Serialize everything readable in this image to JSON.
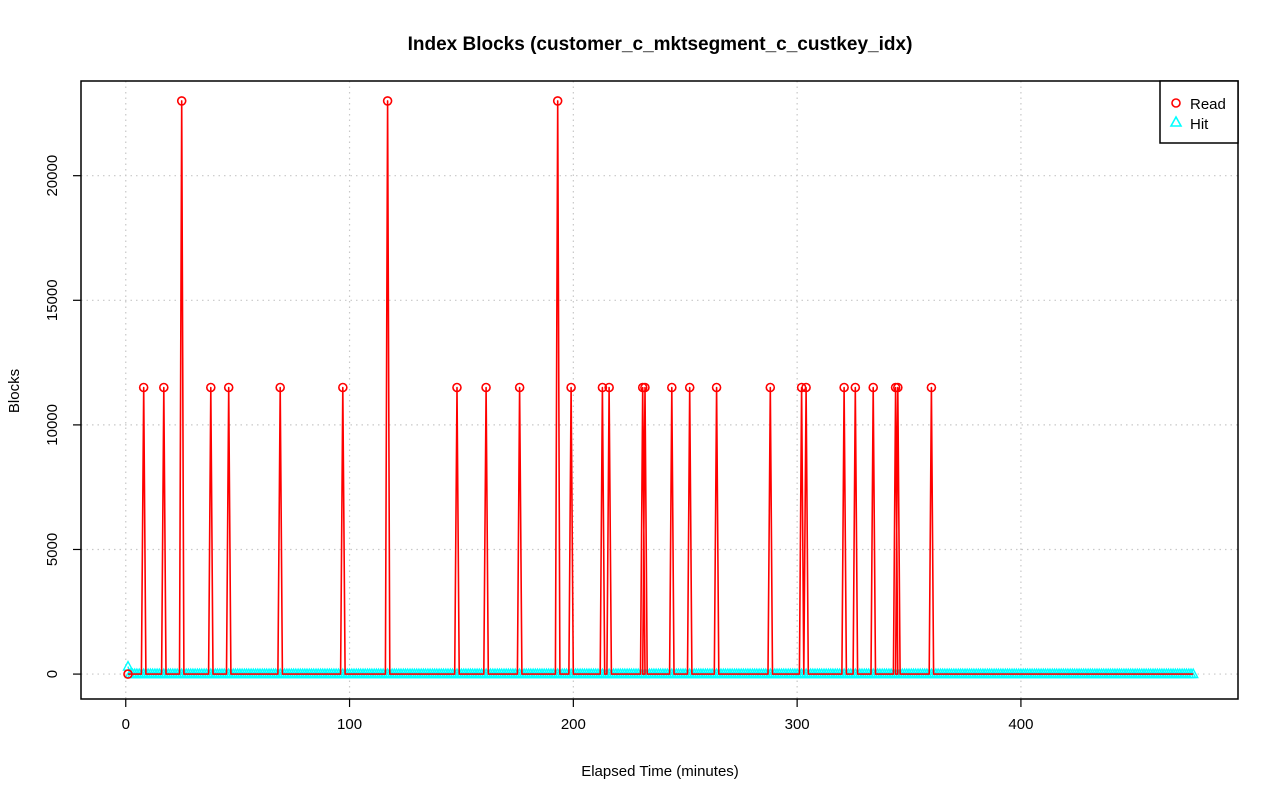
{
  "chart_data": {
    "type": "line",
    "title": "Index Blocks (customer_c_mktsegment_c_custkey_idx)",
    "xlabel": "Elapsed Time (minutes)",
    "ylabel": "Blocks",
    "xlim": [
      -20,
      497
    ],
    "ylim": [
      -1000,
      23800
    ],
    "x_ticks": [
      0,
      100,
      200,
      300,
      400
    ],
    "y_ticks": [
      0,
      5000,
      10000,
      15000,
      20000
    ],
    "grid": true,
    "legend_position": "top-right",
    "x_range": [
      1,
      477
    ],
    "series": [
      {
        "name": "Read",
        "color": "#ff0000",
        "marker": "circle",
        "baseline": 0,
        "spikes": [
          {
            "x": 8,
            "y": 11500
          },
          {
            "x": 17,
            "y": 11500
          },
          {
            "x": 25,
            "y": 23000
          },
          {
            "x": 38,
            "y": 11500
          },
          {
            "x": 46,
            "y": 11500
          },
          {
            "x": 69,
            "y": 11500
          },
          {
            "x": 97,
            "y": 11500
          },
          {
            "x": 117,
            "y": 23000
          },
          {
            "x": 148,
            "y": 11500
          },
          {
            "x": 161,
            "y": 11500
          },
          {
            "x": 176,
            "y": 11500
          },
          {
            "x": 193,
            "y": 23000
          },
          {
            "x": 199,
            "y": 11500
          },
          {
            "x": 213,
            "y": 11500
          },
          {
            "x": 216,
            "y": 11500
          },
          {
            "x": 231,
            "y": 11500
          },
          {
            "x": 232,
            "y": 11500
          },
          {
            "x": 244,
            "y": 11500
          },
          {
            "x": 252,
            "y": 11500
          },
          {
            "x": 264,
            "y": 11500
          },
          {
            "x": 288,
            "y": 11500
          },
          {
            "x": 302,
            "y": 11500
          },
          {
            "x": 304,
            "y": 11500
          },
          {
            "x": 321,
            "y": 11500
          },
          {
            "x": 326,
            "y": 11500
          },
          {
            "x": 334,
            "y": 11500
          },
          {
            "x": 344,
            "y": 11500
          },
          {
            "x": 345,
            "y": 11500
          },
          {
            "x": 360,
            "y": 11500
          }
        ]
      },
      {
        "name": "Hit",
        "color": "#00ffff",
        "marker": "triangle",
        "baseline": 0,
        "spikes": [
          {
            "x": 1,
            "y": 300
          }
        ]
      }
    ]
  }
}
